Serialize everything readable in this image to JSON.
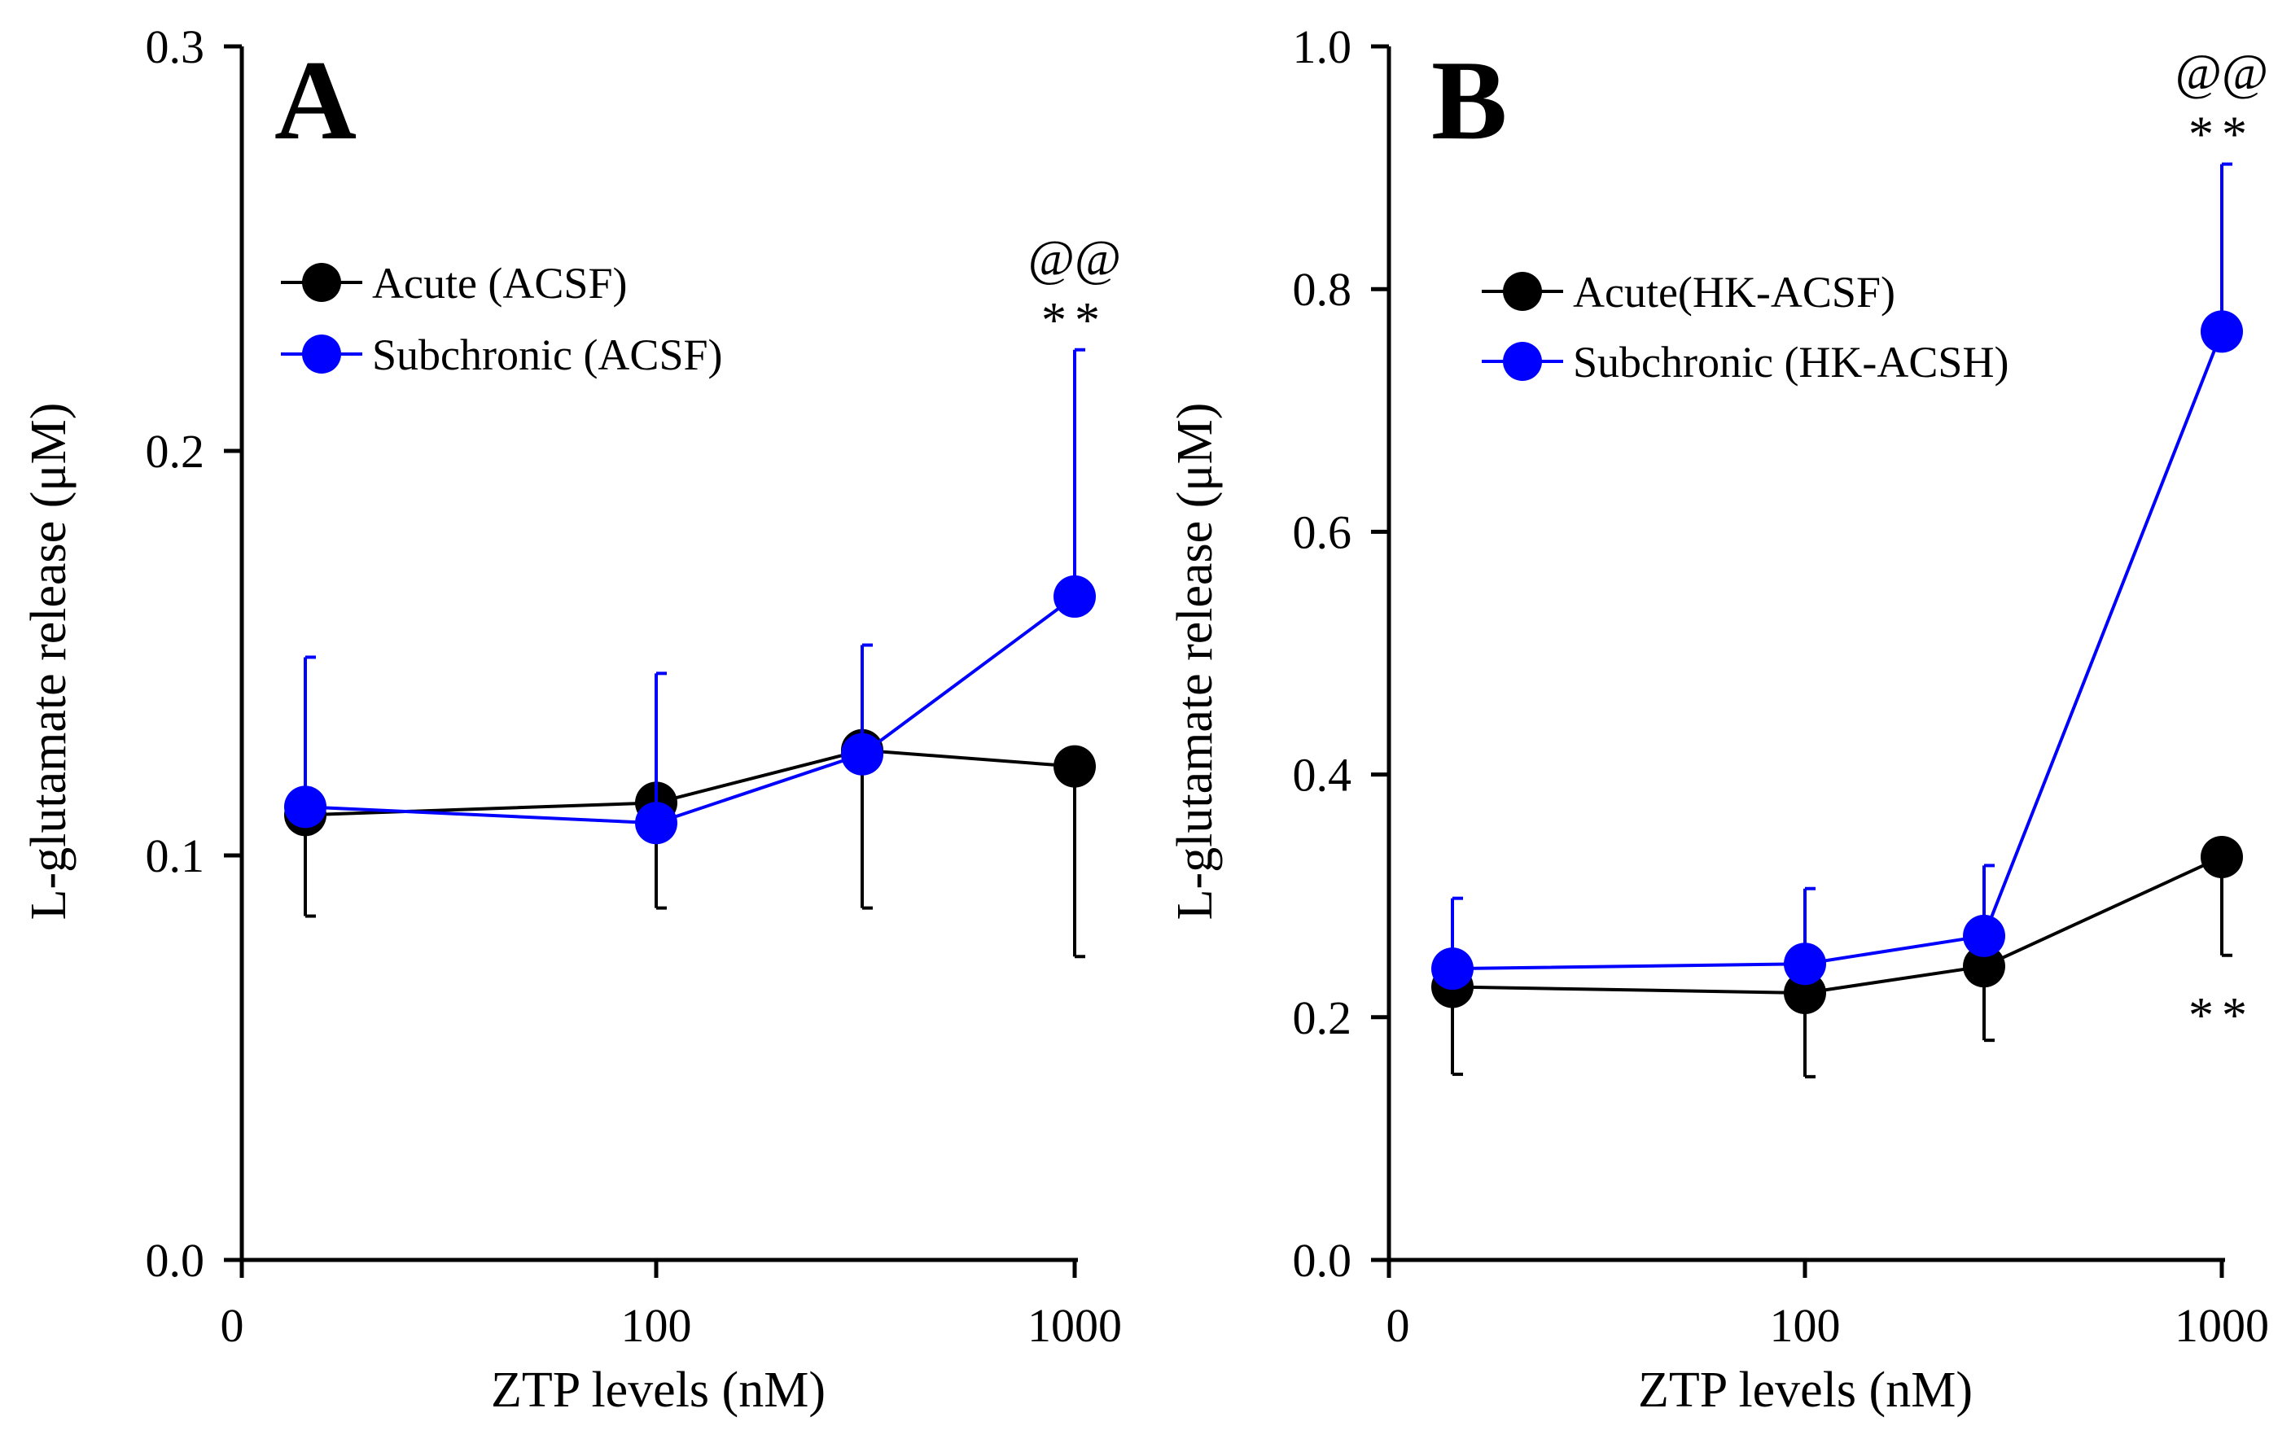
{
  "chart_data": [
    {
      "type": "line",
      "panel_label": "A",
      "xlabel": "ZTP levels (nM)",
      "ylabel": "L-glutamate release (μM)",
      "ylim": [
        0,
        0.3
      ],
      "yticks": [
        "0.0",
        "0.1",
        "0.2",
        "0.3"
      ],
      "xticks": [
        "0",
        "100",
        "1000"
      ],
      "x": [
        3,
        100,
        300,
        1000
      ],
      "grid": false,
      "legend": "upper-left",
      "series": [
        {
          "name": "Acute (ACSF)",
          "color": "#000000",
          "values": [
            0.11,
            0.113,
            0.126,
            0.122
          ],
          "error_low": [
            0.085,
            0.087,
            0.087,
            0.075
          ]
        },
        {
          "name": "Subchronic (ACSF)",
          "color": "#0000ff",
          "values": [
            0.112,
            0.108,
            0.125,
            0.164
          ],
          "error_high": [
            0.149,
            0.145,
            0.152,
            0.225
          ]
        }
      ],
      "annotations": [
        {
          "text": "@@",
          "x": 1000,
          "series": "Subchronic (ACSF)",
          "position": "above"
        },
        {
          "text": "**",
          "x": 1000,
          "series": "Subchronic (ACSF)",
          "position": "above"
        }
      ]
    },
    {
      "type": "line",
      "panel_label": "B",
      "xlabel": "ZTP levels (nM)",
      "ylabel": "L-glutamate release (μM)",
      "ylim": [
        0,
        1.0
      ],
      "yticks": [
        "0.0",
        "0.2",
        "0.4",
        "0.6",
        "0.8",
        "1.0"
      ],
      "xticks": [
        "0",
        "100",
        "1000"
      ],
      "x": [
        3,
        100,
        300,
        1000
      ],
      "grid": false,
      "legend": "upper-left",
      "series": [
        {
          "name": "Acute(HK-ACSF)",
          "color": "#000000",
          "values": [
            0.225,
            0.22,
            0.242,
            0.332
          ],
          "error_low": [
            0.153,
            0.151,
            0.181,
            0.251
          ]
        },
        {
          "name": "Subchronic (HK-ACSH)",
          "color": "#0000ff",
          "values": [
            0.24,
            0.244,
            0.267,
            0.765
          ],
          "error_high": [
            0.298,
            0.306,
            0.325,
            0.903
          ]
        }
      ],
      "annotations": [
        {
          "text": "@@",
          "x": 1000,
          "series": "Subchronic (HK-ACSH)",
          "position": "above"
        },
        {
          "text": "**",
          "x": 1000,
          "series": "Subchronic (HK-ACSH)",
          "position": "above"
        },
        {
          "text": "**",
          "x": 1000,
          "series": "Acute(HK-ACSF)",
          "position": "below"
        }
      ]
    }
  ]
}
